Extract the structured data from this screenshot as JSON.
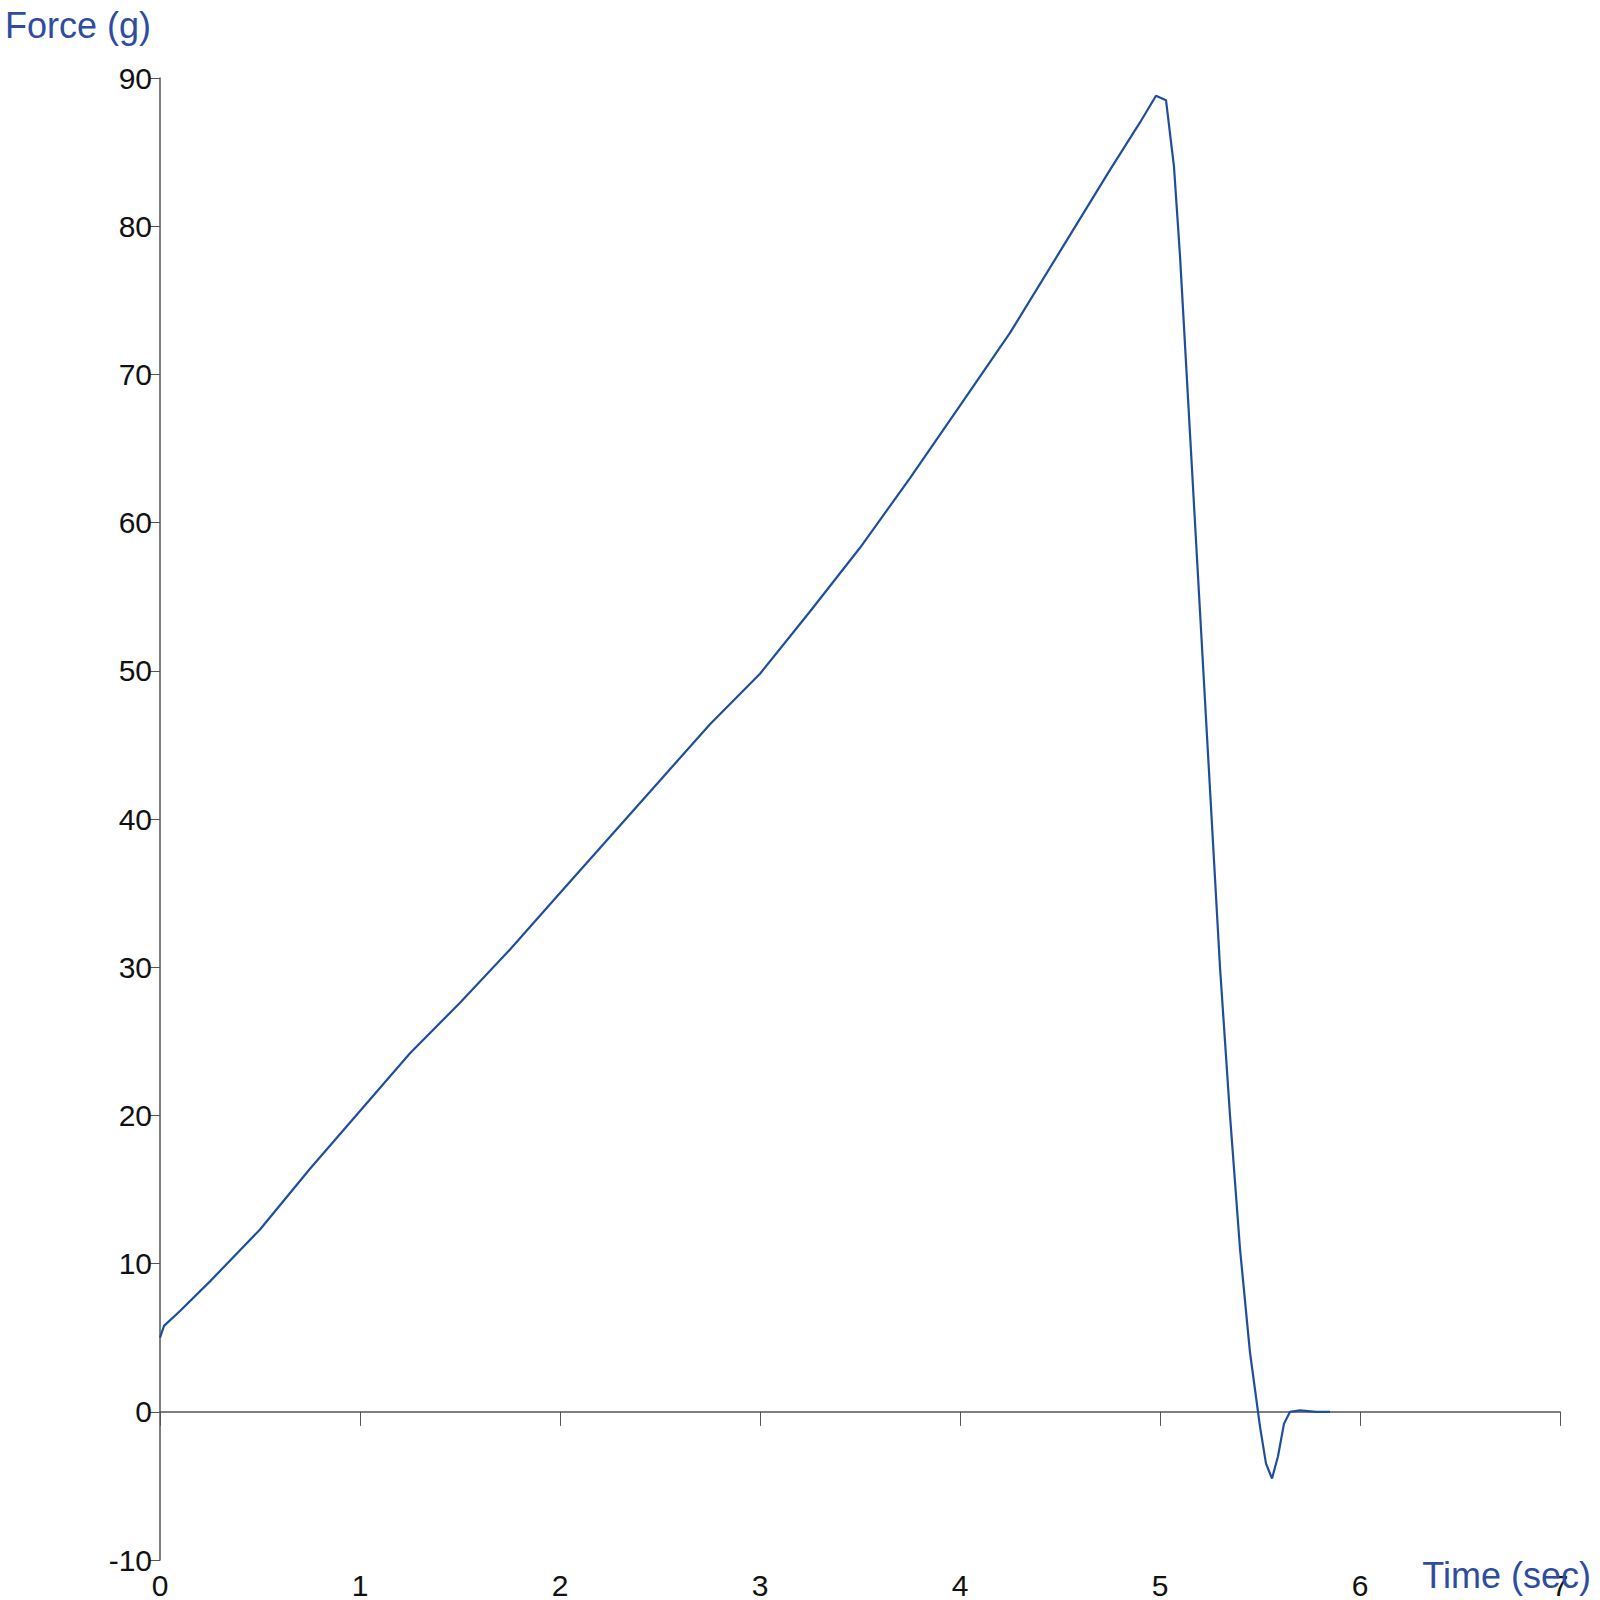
{
  "chart_data": {
    "type": "line",
    "xlabel": "Time (sec)",
    "ylabel": "Force (g)",
    "x": [
      0,
      0.02,
      0.1,
      0.25,
      0.5,
      0.75,
      1,
      1.25,
      1.5,
      1.75,
      2,
      2.25,
      2.5,
      2.75,
      3,
      3.25,
      3.5,
      3.75,
      4,
      4.25,
      4.5,
      4.75,
      4.9,
      4.98,
      5.03,
      5.07,
      5.1,
      5.15,
      5.2,
      5.25,
      5.3,
      5.35,
      5.4,
      5.45,
      5.5,
      5.53,
      5.56,
      5.59,
      5.62,
      5.65,
      5.7,
      5.78,
      5.85
    ],
    "values": [
      5,
      5.8,
      6.8,
      8.8,
      12.3,
      16.4,
      20.3,
      24.2,
      27.6,
      31.2,
      35,
      38.8,
      42.6,
      46.4,
      49.8,
      54,
      58.3,
      63,
      67.9,
      72.8,
      78.3,
      83.8,
      87,
      88.8,
      88.5,
      84,
      78,
      66,
      54,
      42,
      30,
      20,
      11,
      4,
      -1,
      -3.5,
      -4.5,
      -3,
      -0.8,
      0,
      0.1,
      0,
      0
    ],
    "color": "#1f4e9c",
    "xlim": [
      0,
      7
    ],
    "xticks": [
      0,
      1,
      2,
      3,
      4,
      5,
      6,
      7
    ],
    "ylim": [
      -10,
      90
    ],
    "yticks": [
      -10,
      0,
      10,
      20,
      30,
      40,
      50,
      60,
      70,
      80,
      90
    ],
    "grid": false
  }
}
